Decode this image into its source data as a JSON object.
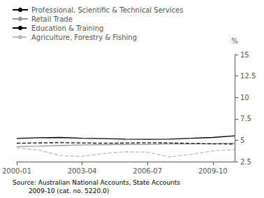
{
  "chart_data": {
    "type": "line",
    "categories": [
      "2000-01",
      null,
      null,
      "2003-04",
      null,
      null,
      "2006-07",
      null,
      null,
      "2009-10",
      null
    ],
    "series": [
      {
        "name": "Professional, Scientific & Technical Services",
        "color": "#000000",
        "line_style": "solid",
        "values": [
          5.2,
          5.28,
          5.32,
          5.22,
          5.18,
          5.12,
          5.1,
          5.13,
          5.22,
          5.32,
          5.52
        ]
      },
      {
        "name": "Retail Trade",
        "color": "#999999",
        "line_style": "solid",
        "values": [
          4.25,
          4.3,
          4.38,
          4.45,
          4.48,
          4.5,
          4.52,
          4.55,
          4.58,
          4.6,
          4.65
        ]
      },
      {
        "name": "Education & Training",
        "color": "#000000",
        "line_style": "dashed",
        "values": [
          4.65,
          4.68,
          4.72,
          4.68,
          4.65,
          4.67,
          4.7,
          4.68,
          4.62,
          4.58,
          4.55
        ]
      },
      {
        "name": "Agriculture, Forestry & Fishing",
        "color": "#bbbbbb",
        "line_style": "dashed",
        "values": [
          4.1,
          3.85,
          3.2,
          3.1,
          3.45,
          3.65,
          3.6,
          3.05,
          3.35,
          3.75,
          3.9
        ]
      }
    ],
    "ylabel": "%",
    "ylim": [
      2.5,
      15.0
    ],
    "yticks": [
      2.5,
      5.0,
      7.5,
      10.0,
      12.5,
      15.0
    ],
    "grid": false,
    "legend": "upper left",
    "annotations": [
      "Source: Australian National Accounts, State Accounts",
      "        2009-10 (cat. no. 5220.0)"
    ]
  }
}
